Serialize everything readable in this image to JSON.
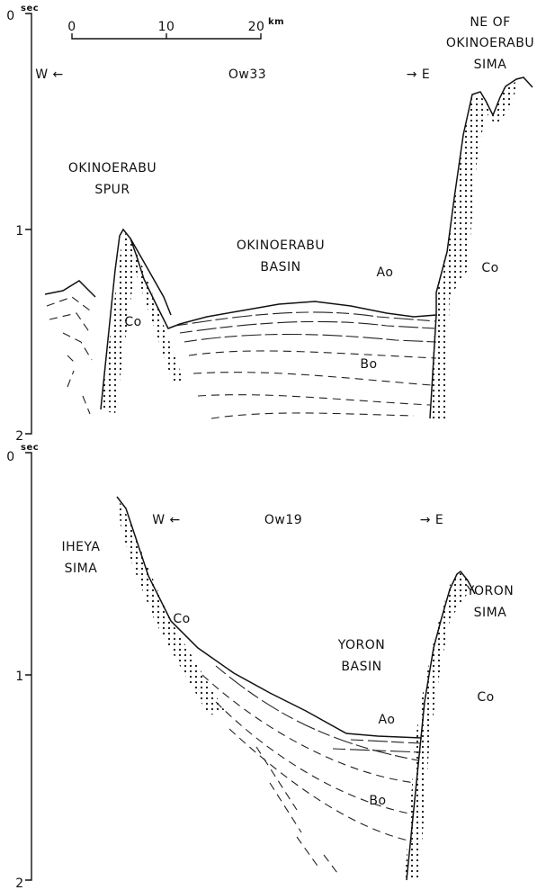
{
  "scale_bar": {
    "ticks": [
      "0",
      "10",
      "20"
    ],
    "unit": "km"
  },
  "profiles": [
    {
      "line": "Ow33",
      "west": "W ←",
      "east": "→ E",
      "time_axis": {
        "unit": "sec",
        "ticks": [
          "0",
          "1",
          "2"
        ]
      },
      "labels": [
        {
          "lines": [
            "NE OF",
            "OKINOERABU",
            "SIMA"
          ]
        },
        {
          "lines": [
            "OKINOERABU",
            "SPUR"
          ]
        },
        {
          "lines": [
            "OKINOERABU",
            "BASIN"
          ]
        },
        {
          "lines": [
            "Ao"
          ]
        },
        {
          "lines": [
            "Bo"
          ]
        },
        {
          "lines": [
            "Co"
          ]
        },
        {
          "lines": [
            "Co"
          ]
        }
      ]
    },
    {
      "line": "Ow19",
      "west": "W ←",
      "east": "→ E",
      "time_axis": {
        "unit": "sec",
        "ticks": [
          "0",
          "1",
          "2"
        ]
      },
      "labels": [
        {
          "lines": [
            "IHEYA",
            "SIMA"
          ]
        },
        {
          "lines": [
            "YORON",
            "SIMA"
          ]
        },
        {
          "lines": [
            "YORON",
            "BASIN"
          ]
        },
        {
          "lines": [
            "Ao"
          ]
        },
        {
          "lines": [
            "Bo"
          ]
        },
        {
          "lines": [
            "Co"
          ]
        },
        {
          "lines": [
            "Co"
          ]
        }
      ]
    }
  ]
}
